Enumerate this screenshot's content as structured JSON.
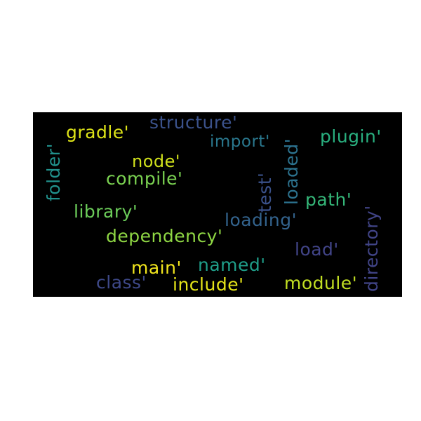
{
  "words": [
    {
      "id": "structure",
      "text": "structure'",
      "color": "#3b528b"
    },
    {
      "id": "gradle",
      "text": "gradle'",
      "color": "#dde318"
    },
    {
      "id": "import",
      "text": "import'",
      "color": "#2a788e"
    },
    {
      "id": "plugin",
      "text": "plugin'",
      "color": "#29af7f"
    },
    {
      "id": "node",
      "text": "node'",
      "color": "#d0e11c"
    },
    {
      "id": "compile",
      "text": "compile'",
      "color": "#7ad151"
    },
    {
      "id": "library",
      "text": "library'",
      "color": "#6ccd5a"
    },
    {
      "id": "path",
      "text": "path'",
      "color": "#35b779"
    },
    {
      "id": "loading",
      "text": "loading'",
      "color": "#33638d"
    },
    {
      "id": "dependency",
      "text": "dependency'",
      "color": "#8fd744"
    },
    {
      "id": "load",
      "text": "load'",
      "color": "#414487"
    },
    {
      "id": "main",
      "text": "main'",
      "color": "#f1e51d"
    },
    {
      "id": "named",
      "text": "named'",
      "color": "#1f9e89"
    },
    {
      "id": "class",
      "text": "class'",
      "color": "#3e4989"
    },
    {
      "id": "include",
      "text": "include'",
      "color": "#e5e419"
    },
    {
      "id": "module",
      "text": "module'",
      "color": "#c2df23"
    },
    {
      "id": "folder",
      "text": "folder'",
      "color": "#21918c"
    },
    {
      "id": "test",
      "text": "test'",
      "color": "#3b528b"
    },
    {
      "id": "loaded",
      "text": "loaded'",
      "color": "#2c728e"
    },
    {
      "id": "directory",
      "text": "directory'",
      "color": "#414487"
    }
  ]
}
